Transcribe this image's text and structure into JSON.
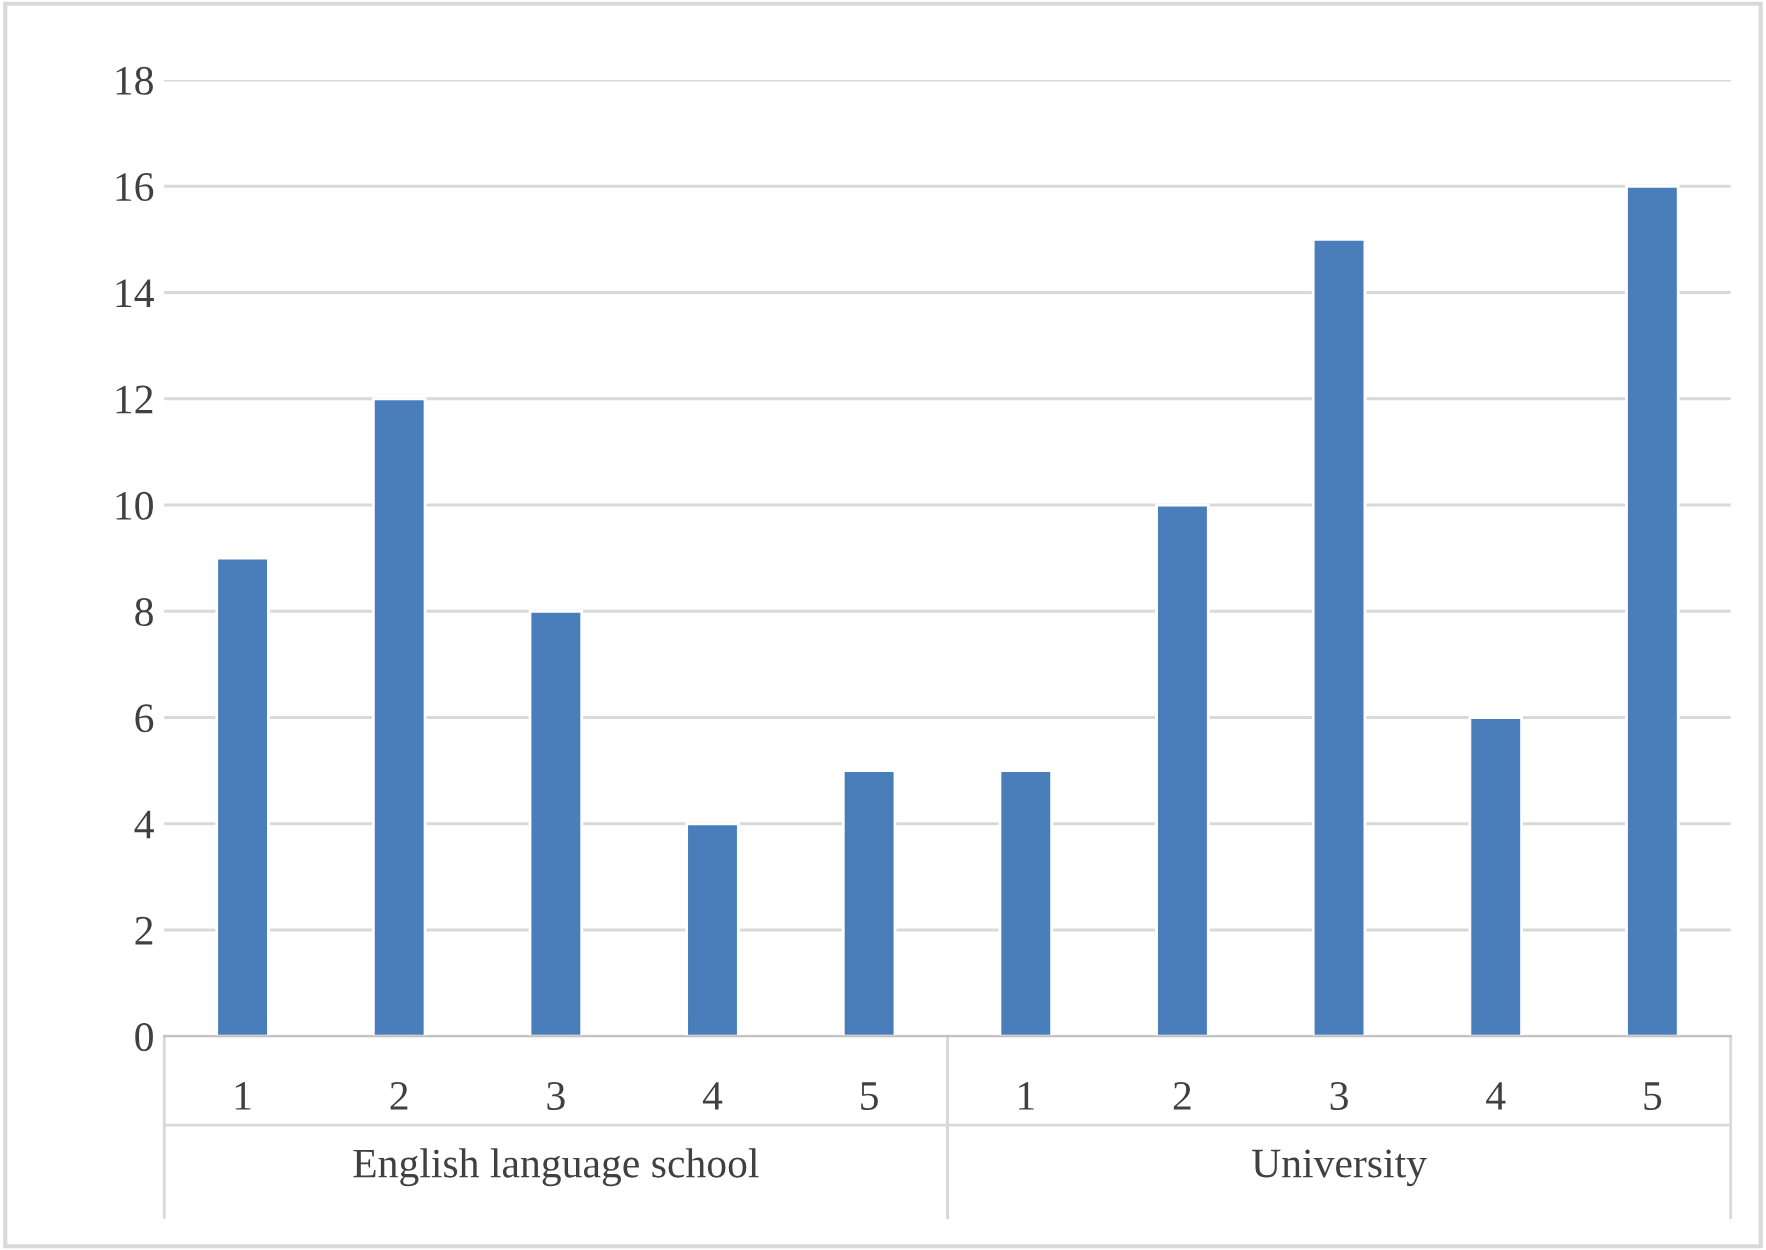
{
  "chart_data": {
    "type": "bar",
    "categories": [
      "1",
      "2",
      "3",
      "4",
      "5",
      "1",
      "2",
      "3",
      "4",
      "5"
    ],
    "values": [
      9,
      12,
      8,
      4,
      5,
      5,
      10,
      15,
      6,
      16
    ],
    "color": "#4a7ebb",
    "ylim": [
      0,
      18
    ],
    "yticks": [
      0,
      2,
      4,
      6,
      8,
      10,
      12,
      14,
      16,
      18
    ],
    "grid": "y",
    "annotations": [
      "English language school",
      "University"
    ]
  }
}
